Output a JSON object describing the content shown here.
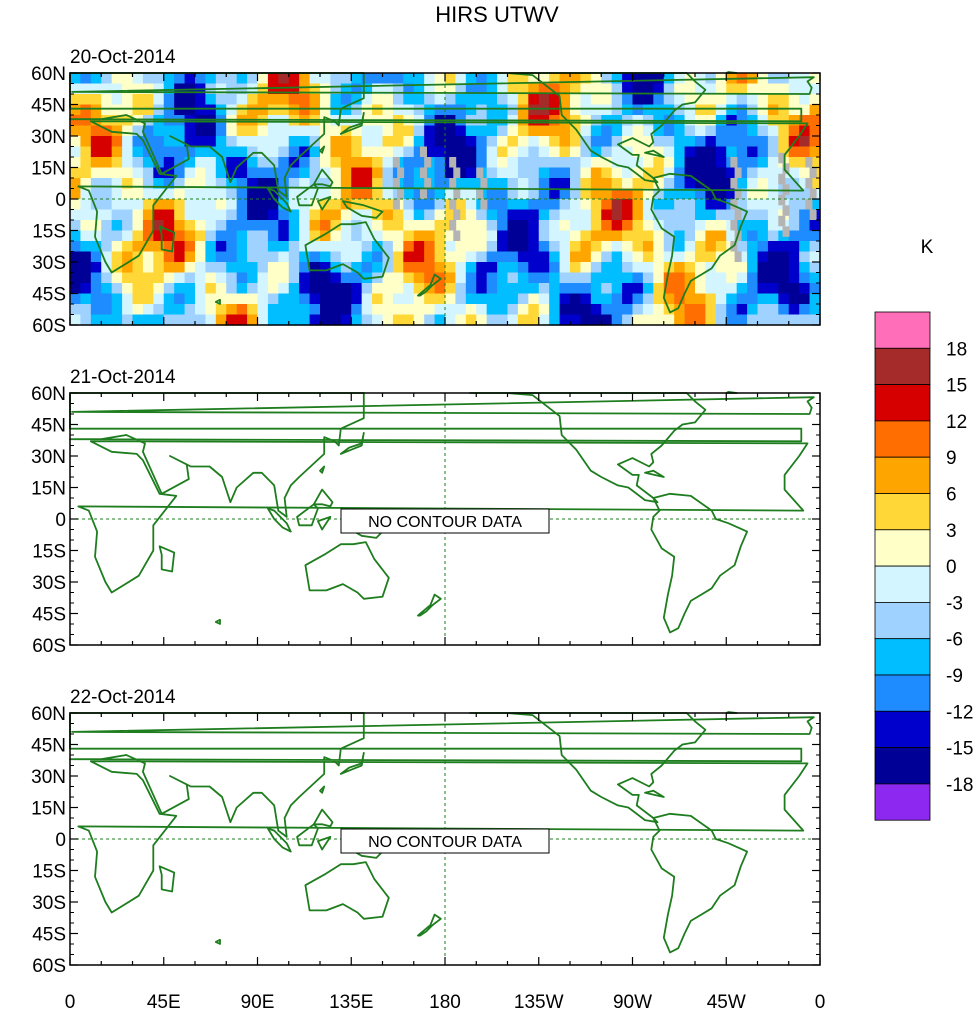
{
  "title": "HIRS UTWV",
  "panels": [
    {
      "date": "20-Oct-2014",
      "has_data": true,
      "no_data_text": ""
    },
    {
      "date": "21-Oct-2014",
      "has_data": false,
      "no_data_text": "NO CONTOUR DATA"
    },
    {
      "date": "22-Oct-2014",
      "has_data": false,
      "no_data_text": "NO CONTOUR DATA"
    }
  ],
  "lat_ticks": [
    "60N",
    "45N",
    "30N",
    "15N",
    "0",
    "15S",
    "30S",
    "45S",
    "60S"
  ],
  "lat_values": [
    60,
    45,
    30,
    15,
    0,
    -15,
    -30,
    -45,
    -60
  ],
  "lon_ticks": [
    "0",
    "45E",
    "90E",
    "135E",
    "180",
    "135W",
    "90W",
    "45W",
    "0"
  ],
  "lon_values": [
    0,
    45,
    90,
    135,
    180,
    225,
    270,
    315,
    360
  ],
  "lon_range": [
    0,
    360
  ],
  "lat_range": [
    -60,
    60
  ],
  "colorbar": {
    "unit": "K",
    "levels": [
      "18",
      "15",
      "12",
      "9",
      "6",
      "3",
      "0",
      "-3",
      "-6",
      "-9",
      "-12",
      "-15",
      "-18"
    ],
    "colors": [
      "#ff6eb9",
      "#a52a2a",
      "#d70000",
      "#ff6e00",
      "#ffa500",
      "#ffd736",
      "#ffffc8",
      "#d2f5ff",
      "#a0d2ff",
      "#00beff",
      "#1e8cff",
      "#0000cd",
      "#000096",
      "#8c28f0"
    ]
  },
  "map_colors": {
    "coast": "#1e7d1e",
    "missing": "#b4b4b4"
  }
}
